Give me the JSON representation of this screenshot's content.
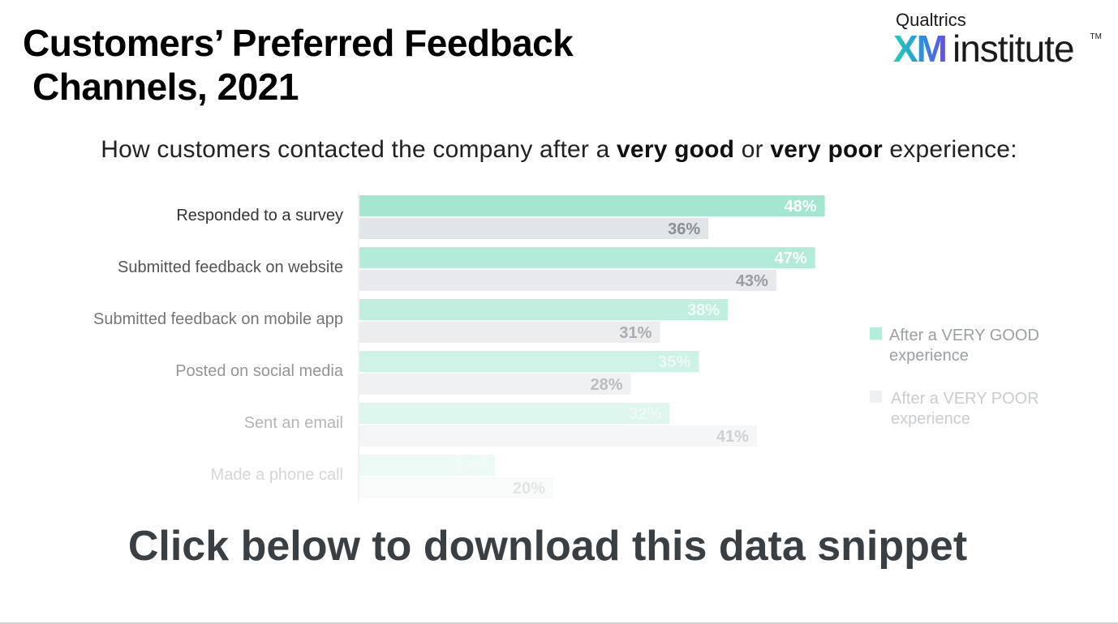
{
  "header": {
    "title_line1": "Customers’ Preferred Feedback",
    "title_line2": "Channels, 2021"
  },
  "logo": {
    "top_text": "Qualtrics",
    "xm_text": "XM",
    "institute_text": "institute",
    "tm_text": "TM"
  },
  "subtitle": {
    "part1": "How customers contacted the company after a ",
    "bold1": "very good",
    "part2": " or ",
    "bold2": "very poor",
    "part3": " experience:"
  },
  "chart_data": {
    "type": "bar",
    "orientation": "horizontal",
    "categories": [
      "Responded to a survey",
      "Submitted feedback on website",
      "Submitted feedback on mobile app",
      "Posted on social media",
      "Sent an email",
      "Made a phone call"
    ],
    "series": [
      {
        "name": "After a VERY GOOD experience",
        "values": [
          48,
          47,
          38,
          35,
          32,
          14
        ],
        "color": "#a3e7d0"
      },
      {
        "name": "After a VERY POOR experience",
        "values": [
          36,
          43,
          31,
          28,
          41,
          20
        ],
        "color": "#e2e5e8"
      }
    ],
    "value_suffix": "%",
    "legend": {
      "placement": "right",
      "items": [
        {
          "line1": "After a VERY GOOD",
          "line2": "experience",
          "color": "#b6ecdb"
        },
        {
          "line1": "After a VERY POOR",
          "line2": "experience",
          "color": "#eef0f2"
        }
      ]
    },
    "title": "",
    "xlabel": "",
    "ylabel": ""
  },
  "cta": {
    "text": "Click below to download this data snippet"
  }
}
